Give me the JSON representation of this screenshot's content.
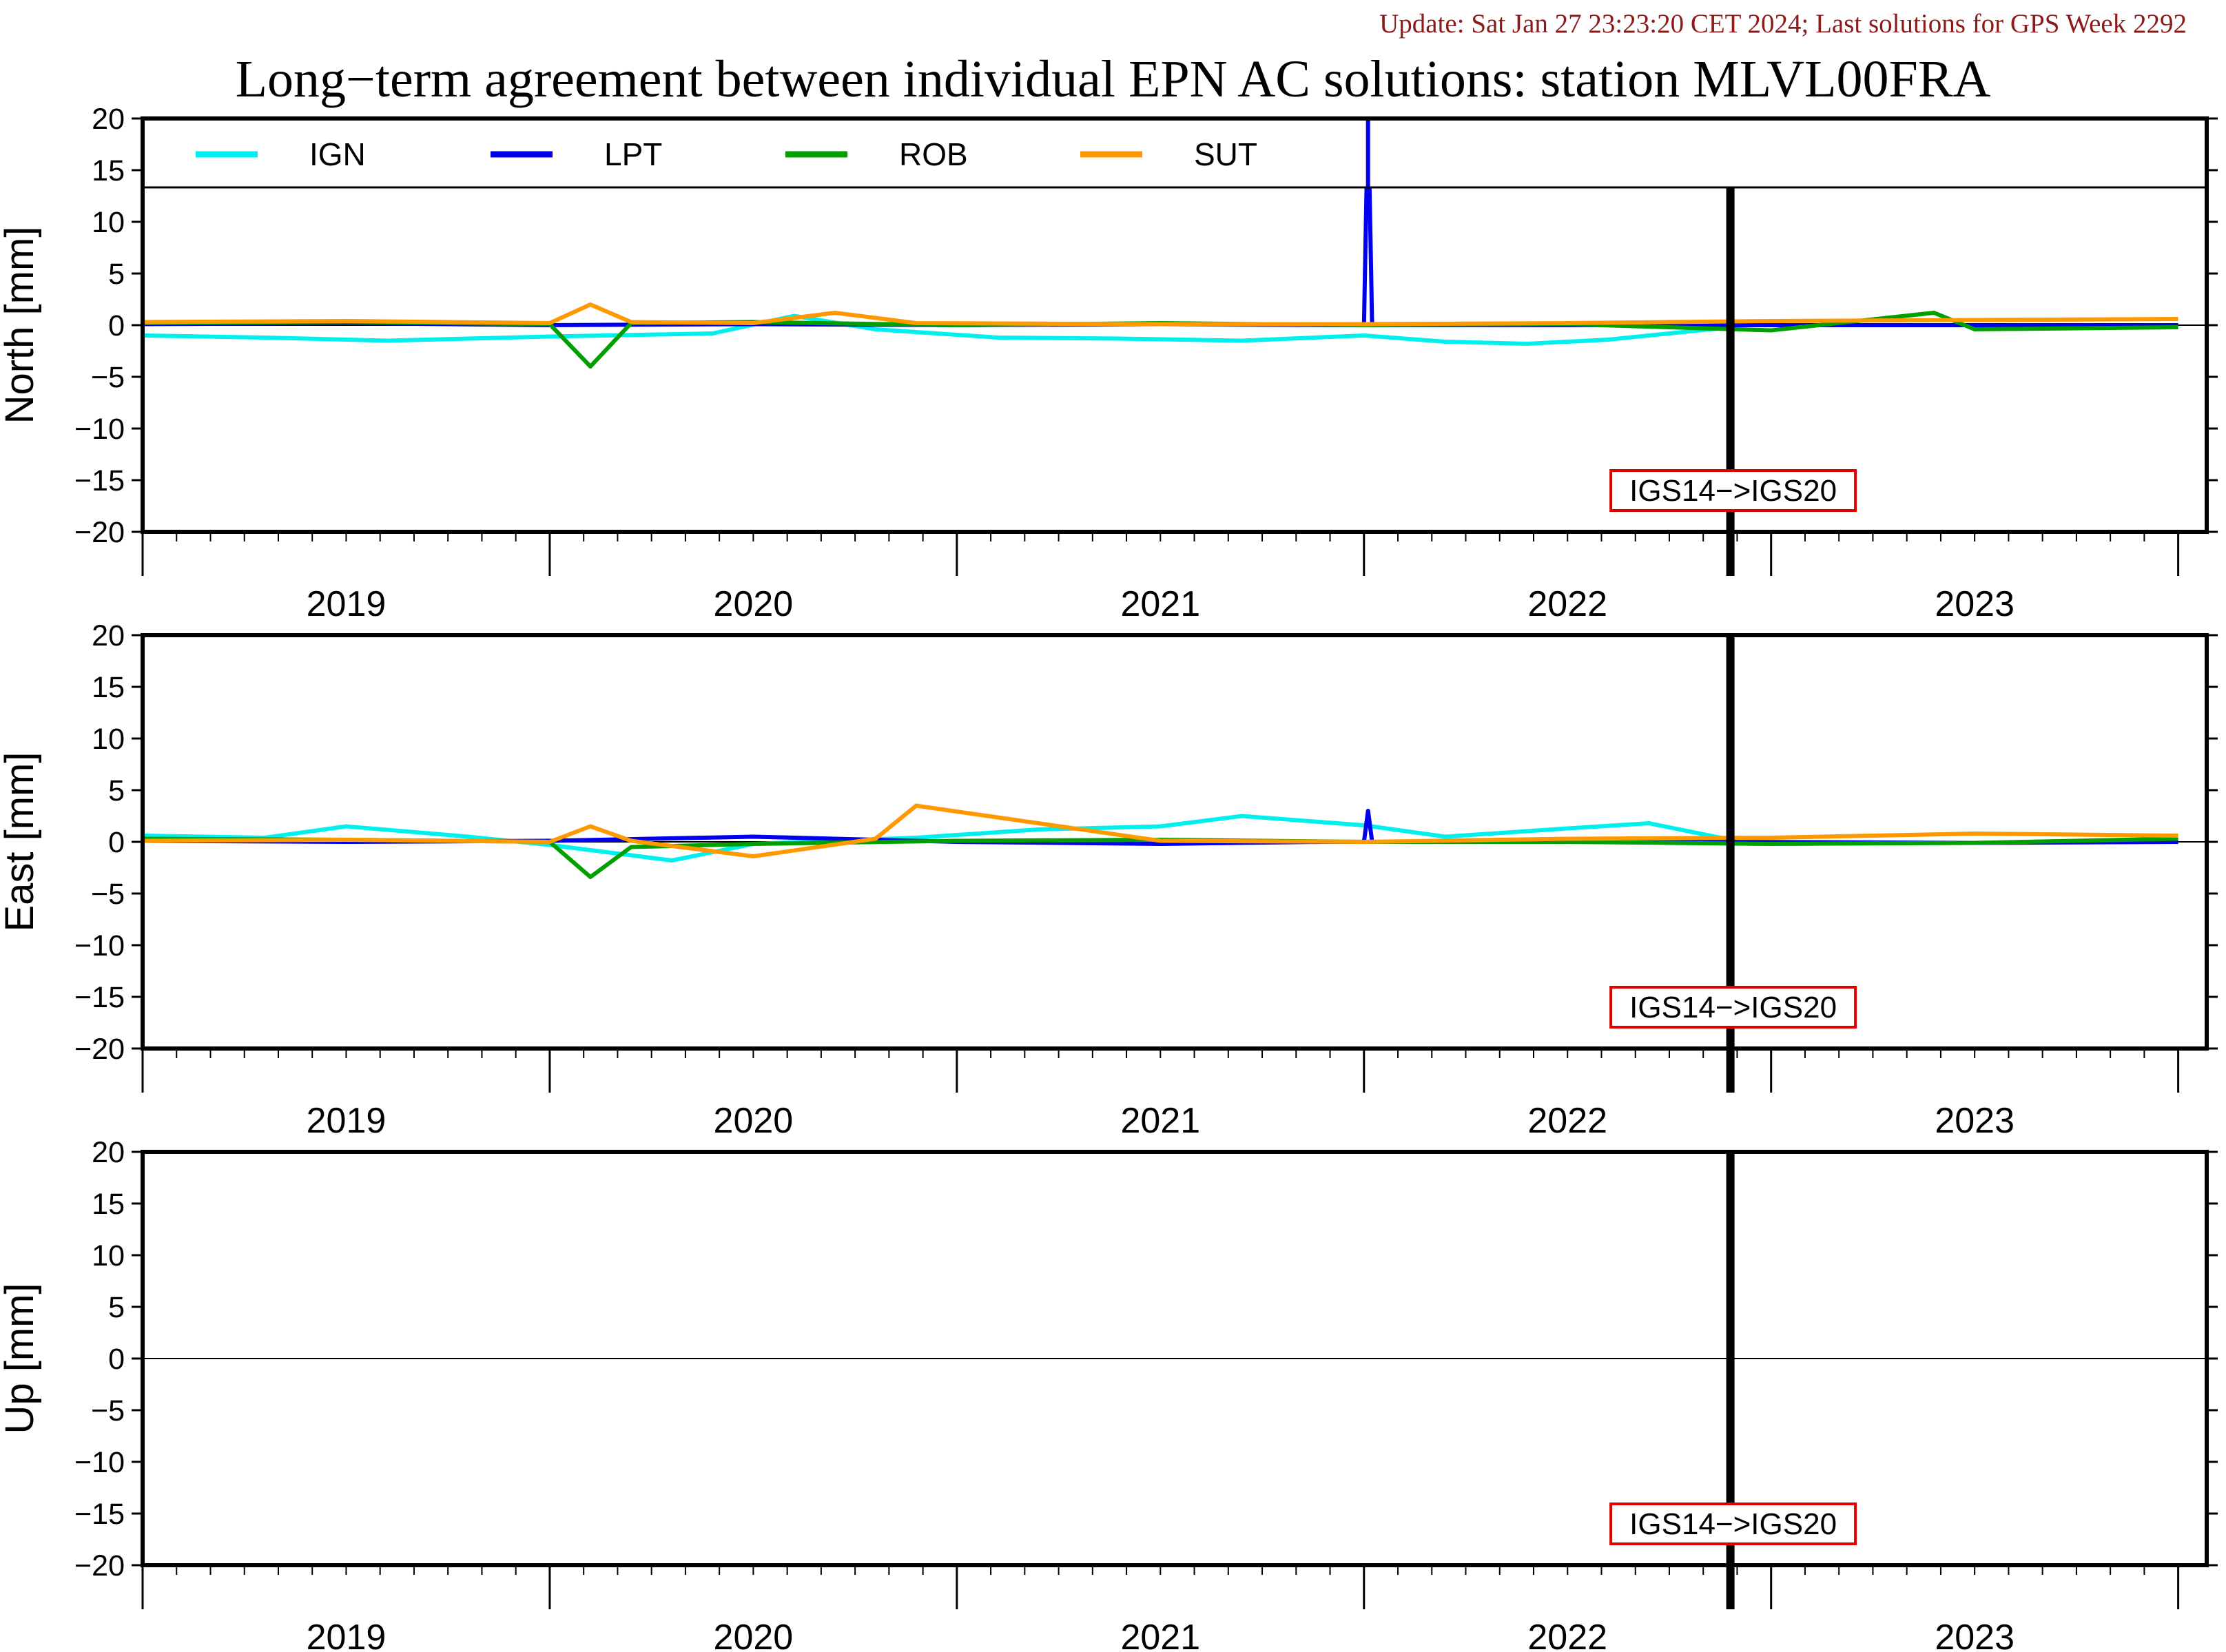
{
  "header": {
    "update_text": "Update: Sat Jan 27 23:23:20 CET 2024; Last solutions for GPS Week 2292",
    "title": "Long−term agreement between individual EPN AC solutions: station MLVL00FRA"
  },
  "colors": {
    "IGN": "#00f0f0",
    "LPT": "#0000ee",
    "ROB": "#00a000",
    "SUT": "#ff9900",
    "update_text": "#8b1a1a",
    "box_border": "#e00000"
  },
  "chart_data": {
    "type": "line",
    "x_range": [
      2018.5,
      2023.57
    ],
    "ylim": [
      -20,
      20
    ],
    "y_ticks": [
      20,
      15,
      10,
      5,
      0,
      -5,
      -10,
      -15,
      -20
    ],
    "y_tick_labels": [
      "20",
      "15",
      "10",
      "5",
      "0",
      "−5",
      "−10",
      "−15",
      "−20"
    ],
    "years": [
      "2019",
      "2020",
      "2021",
      "2022",
      "2023"
    ],
    "year_bounds": [
      2018.5,
      2019.5,
      2020.5,
      2021.5,
      2022.5,
      2023.5
    ],
    "legend": [
      {
        "name": "IGN",
        "color": "#00f0f0"
      },
      {
        "name": "LPT",
        "color": "#0000ee"
      },
      {
        "name": "ROB",
        "color": "#00a000"
      },
      {
        "name": "SUT",
        "color": "#ff9900"
      }
    ],
    "reference_frame_change": {
      "x": 2022.4,
      "label": "IGS14−>IGS20"
    },
    "panels": [
      {
        "ylabel": "North [mm]",
        "series": [
          {
            "name": "IGN",
            "x": [
              2018.5,
              2018.8,
              2019.1,
              2019.3,
              2019.5,
              2019.9,
              2020.1,
              2020.3,
              2020.6,
              2020.9,
              2021.2,
              2021.5,
              2021.7,
              2021.9,
              2022.1,
              2022.4
            ],
            "y": [
              -1.0,
              -1.2,
              -1.5,
              -1.3,
              -1.1,
              -0.8,
              0.9,
              -0.4,
              -1.2,
              -1.3,
              -1.5,
              -1.0,
              -1.6,
              -1.8,
              -1.4,
              -0.2
            ]
          },
          {
            "name": "LPT",
            "x": [
              2018.5,
              2019.0,
              2019.5,
              2020.0,
              2020.5,
              2021.0,
              2021.4,
              2021.5,
              2021.51,
              2021.52,
              2022.0,
              2022.4,
              2023.0,
              2023.5
            ],
            "y": [
              0.1,
              0.2,
              0.0,
              0.1,
              0.0,
              0.1,
              0.0,
              0.0,
              21.0,
              0.0,
              0.0,
              0.0,
              0.0,
              0.0
            ]
          },
          {
            "name": "ROB",
            "x": [
              2018.5,
              2019.0,
              2019.5,
              2019.6,
              2019.7,
              2020.0,
              2020.5,
              2021.0,
              2021.5,
              2022.0,
              2022.5,
              2022.9,
              2023.0,
              2023.5
            ],
            "y": [
              0.2,
              0.3,
              0.1,
              -4.0,
              0.2,
              0.3,
              0.0,
              0.2,
              0.0,
              0.1,
              -0.5,
              1.2,
              -0.4,
              -0.2
            ]
          },
          {
            "name": "SUT",
            "x": [
              2018.5,
              2019.0,
              2019.5,
              2019.6,
              2019.7,
              2020.0,
              2020.2,
              2020.4,
              2021.0,
              2021.5,
              2022.0,
              2022.5,
              2023.0,
              2023.5
            ],
            "y": [
              0.3,
              0.4,
              0.2,
              2.0,
              0.3,
              0.2,
              1.2,
              0.2,
              0.1,
              0.1,
              0.2,
              0.4,
              0.5,
              0.6
            ]
          }
        ]
      },
      {
        "ylabel": "East [mm]",
        "series": [
          {
            "name": "IGN",
            "x": [
              2018.5,
              2018.8,
              2019.0,
              2019.3,
              2019.5,
              2019.8,
              2020.0,
              2020.4,
              2020.7,
              2021.0,
              2021.2,
              2021.5,
              2021.7,
              2022.0,
              2022.2,
              2022.4
            ],
            "y": [
              0.6,
              0.4,
              1.5,
              0.5,
              -0.3,
              -1.8,
              -0.2,
              0.4,
              1.2,
              1.5,
              2.5,
              1.6,
              0.5,
              1.3,
              1.8,
              0.2
            ]
          },
          {
            "name": "LPT",
            "x": [
              2018.5,
              2019.0,
              2019.5,
              2020.0,
              2020.5,
              2021.0,
              2021.4,
              2021.5,
              2021.51,
              2021.52,
              2022.0,
              2022.4,
              2023.0,
              2023.5
            ],
            "y": [
              0.1,
              0.0,
              0.1,
              0.5,
              0.0,
              -0.2,
              0.0,
              0.0,
              3.0,
              0.0,
              0.0,
              0.0,
              -0.1,
              0.0
            ]
          },
          {
            "name": "ROB",
            "x": [
              2018.5,
              2019.0,
              2019.5,
              2019.6,
              2019.7,
              2020.0,
              2020.5,
              2021.0,
              2021.5,
              2022.0,
              2022.5,
              2023.0,
              2023.5
            ],
            "y": [
              0.3,
              0.2,
              0.0,
              -3.4,
              -0.5,
              -0.2,
              0.1,
              0.2,
              0.0,
              0.0,
              -0.2,
              -0.1,
              0.3
            ]
          },
          {
            "name": "SUT",
            "x": [
              2018.5,
              2019.0,
              2019.5,
              2019.6,
              2019.7,
              2020.0,
              2020.3,
              2020.4,
              2021.0,
              2021.5,
              2022.0,
              2022.5,
              2023.0,
              2023.5
            ],
            "y": [
              0.1,
              0.2,
              0.0,
              1.5,
              0.1,
              -1.4,
              0.3,
              3.5,
              0.1,
              0.0,
              0.3,
              0.4,
              0.8,
              0.6
            ]
          }
        ]
      },
      {
        "ylabel": "Up [mm]",
        "series": []
      }
    ]
  }
}
